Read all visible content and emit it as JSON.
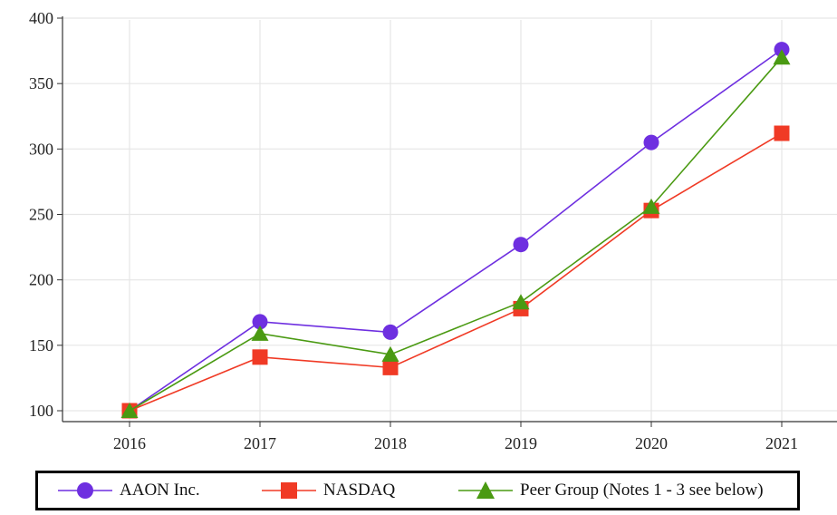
{
  "chart_data": {
    "type": "line",
    "title": "",
    "xlabel": "",
    "ylabel": "",
    "x": [
      "2016",
      "2017",
      "2018",
      "2019",
      "2020",
      "2021"
    ],
    "ylim": [
      100,
      400
    ],
    "yticks": [
      100,
      150,
      200,
      250,
      300,
      350,
      400
    ],
    "grid": true,
    "legend": "bottom",
    "series": [
      {
        "name": "AAON Inc.",
        "values": [
          100,
          168,
          160,
          227,
          305,
          376
        ],
        "color": "#6e2fe0",
        "marker": "circle"
      },
      {
        "name": "NASDAQ",
        "values": [
          100,
          141,
          133,
          178,
          253,
          312
        ],
        "color": "#f03a25",
        "marker": "square"
      },
      {
        "name": "Peer Group (Notes 1 - 3 see below)",
        "values": [
          100,
          159,
          143,
          183,
          256,
          370
        ],
        "color": "#4a9a12",
        "marker": "triangle"
      }
    ]
  }
}
